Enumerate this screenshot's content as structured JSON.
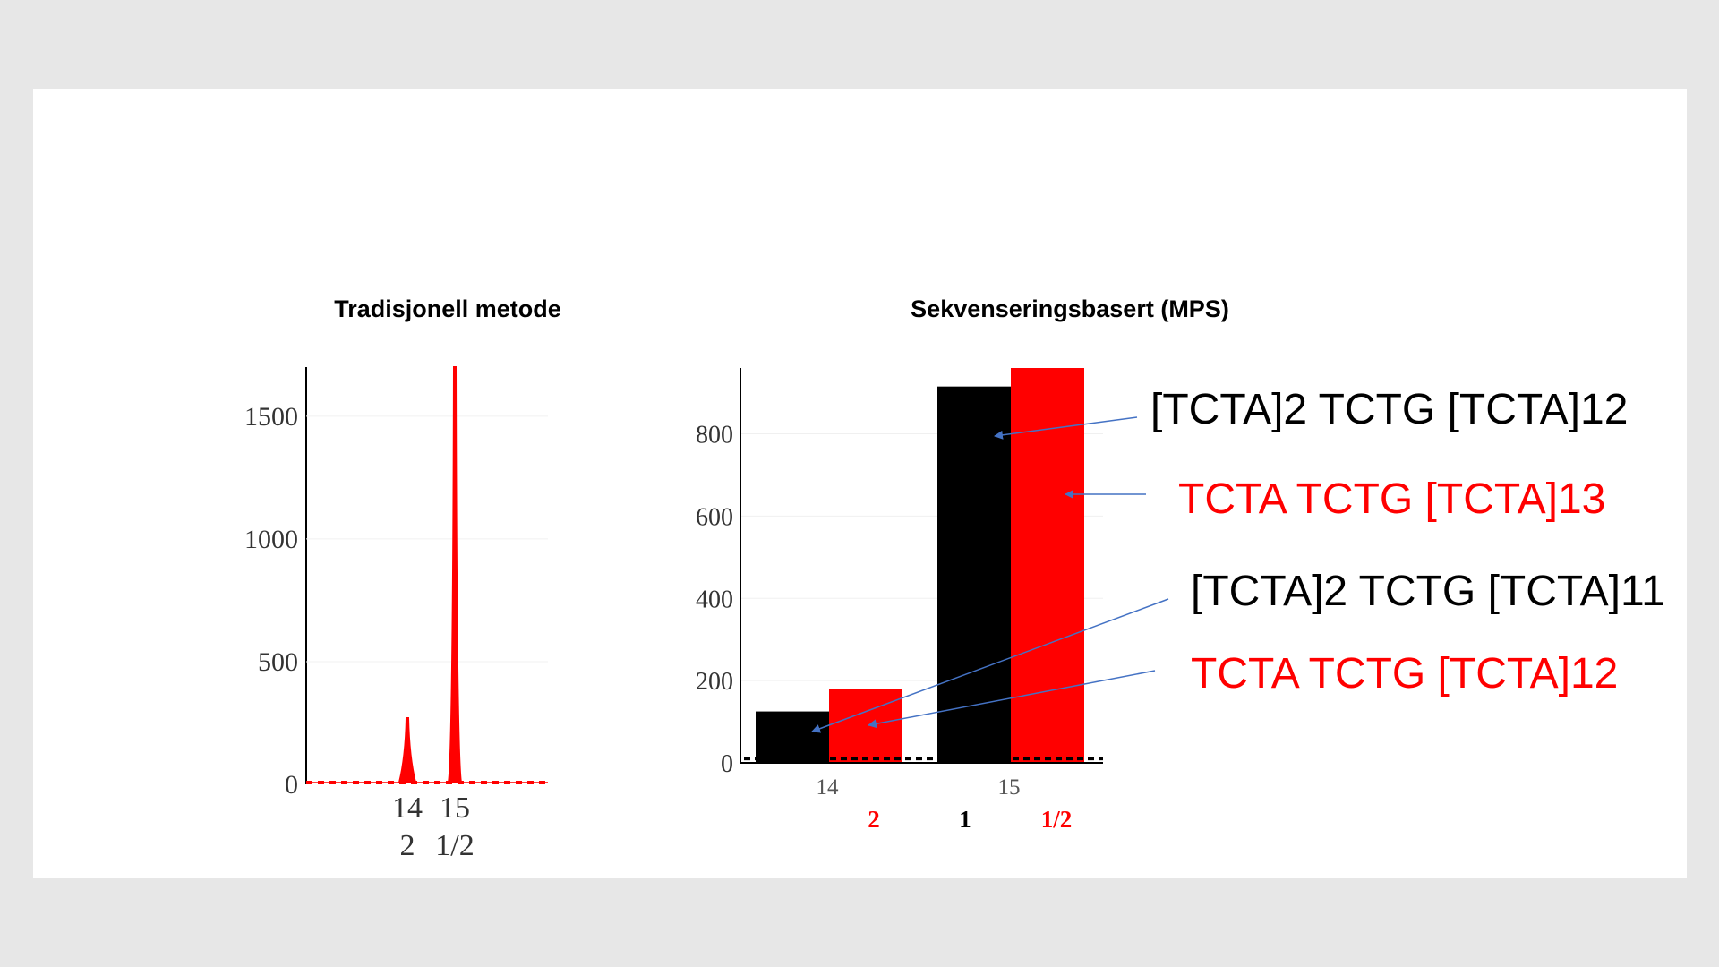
{
  "colors": {
    "background": "#e7e7e7",
    "slide": "#ffffff",
    "red": "#ff0000",
    "black": "#000000",
    "arrow": "#4472c4"
  },
  "chart_data": [
    {
      "type": "line",
      "title": "Tradisjonell metode",
      "xlabel": "",
      "ylabel": "",
      "ylim": [
        0,
        1700
      ],
      "yticks": [
        0,
        500,
        1000,
        1500
      ],
      "x_tick_labels": [
        "14",
        "15"
      ],
      "x_sub_labels": [
        "2",
        "1/2"
      ],
      "series": [
        {
          "color": "#ff0000",
          "peaks": [
            {
              "allele": "14.2",
              "value": 270
            },
            {
              "allele": "15.1/2",
              "value": 1700
            }
          ],
          "baseline": 0
        }
      ],
      "threshold_line": {
        "value": 0,
        "style": "dotted",
        "color": "#ff0000"
      }
    },
    {
      "type": "bar",
      "title": "Sekvenseringsbasert (MPS)",
      "xlabel": "",
      "ylabel": "",
      "ylim": [
        0,
        960
      ],
      "yticks": [
        0,
        200,
        400,
        600,
        800
      ],
      "categories": [
        "14",
        "15"
      ],
      "sub_labels": [
        {
          "category": "14",
          "text": "2",
          "color": "#ff0000"
        },
        {
          "category": "15",
          "text": "1",
          "color": "#000000"
        },
        {
          "category": "15",
          "text": "1/2",
          "color": "#ff0000"
        }
      ],
      "series": [
        {
          "color": "#000000",
          "values": [
            125,
            915
          ]
        },
        {
          "color": "#ff0000",
          "values": [
            180,
            960
          ]
        }
      ],
      "threshold_line": {
        "value": 10,
        "style": "dotted",
        "color": "#000000"
      }
    }
  ],
  "annotations": [
    {
      "text": "[TCTA]2 TCTG [TCTA]12",
      "color": "#000000"
    },
    {
      "text": "TCTA TCTG [TCTA]13",
      "color": "#ff0000"
    },
    {
      "text": "[TCTA]2 TCTG [TCTA]11",
      "color": "#000000"
    },
    {
      "text": "TCTA TCTG [TCTA]12",
      "color": "#ff0000"
    }
  ]
}
